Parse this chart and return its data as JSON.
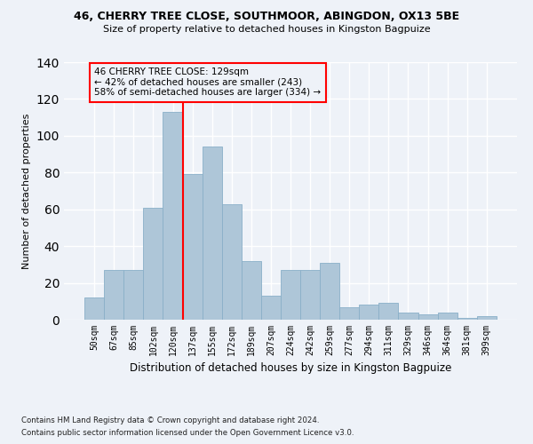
{
  "title1": "46, CHERRY TREE CLOSE, SOUTHMOOR, ABINGDON, OX13 5BE",
  "title2": "Size of property relative to detached houses in Kingston Bagpuize",
  "xlabel": "Distribution of detached houses by size in Kingston Bagpuize",
  "ylabel": "Number of detached properties",
  "footer1": "Contains HM Land Registry data © Crown copyright and database right 2024.",
  "footer2": "Contains public sector information licensed under the Open Government Licence v3.0.",
  "bin_labels": [
    "50sqm",
    "67sqm",
    "85sqm",
    "102sqm",
    "120sqm",
    "137sqm",
    "155sqm",
    "172sqm",
    "189sqm",
    "207sqm",
    "224sqm",
    "242sqm",
    "259sqm",
    "277sqm",
    "294sqm",
    "311sqm",
    "329sqm",
    "346sqm",
    "364sqm",
    "381sqm",
    "399sqm"
  ],
  "bar_values": [
    12,
    27,
    27,
    61,
    113,
    79,
    94,
    63,
    32,
    13,
    27,
    27,
    31,
    7,
    8,
    9,
    4,
    3,
    4,
    1,
    2
  ],
  "bar_color": "#aec6d8",
  "bar_edgecolor": "#8aafc8",
  "vline_x": 4.5,
  "vline_color": "red",
  "annotation_text": "46 CHERRY TREE CLOSE: 129sqm\n← 42% of detached houses are smaller (243)\n58% of semi-detached houses are larger (334) →",
  "ylim": [
    0,
    140
  ],
  "background_color": "#eef2f8",
  "grid_color": "#ffffff"
}
